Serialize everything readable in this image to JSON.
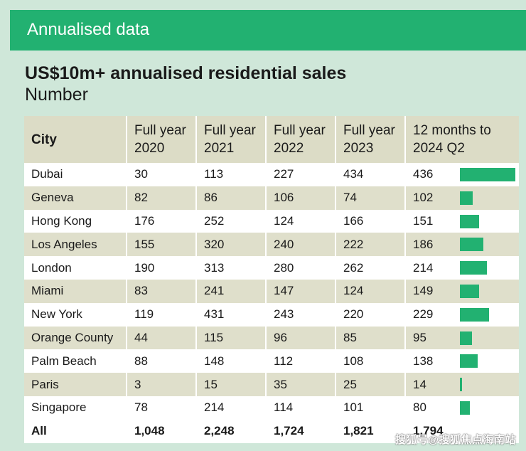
{
  "header": {
    "label": "Annualised data"
  },
  "chart_data": {
    "type": "table",
    "title": "US$10m+ annualised residential sales",
    "subtitle": "Number",
    "columns": [
      "City",
      "Full year 2020",
      "Full year 2021",
      "Full year 2022",
      "Full year 2023",
      "12 months to 2024 Q2"
    ],
    "column_lines": [
      [
        "City"
      ],
      [
        "Full year",
        "2020"
      ],
      [
        "Full year",
        "2021"
      ],
      [
        "Full year",
        "2022"
      ],
      [
        "Full year",
        "2023"
      ],
      [
        "12 months to",
        "2024 Q2"
      ]
    ],
    "rows": [
      {
        "city": "Dubai",
        "values": [
          "30",
          "113",
          "227",
          "434",
          "436"
        ],
        "last": 436
      },
      {
        "city": "Geneva",
        "values": [
          "82",
          "86",
          "106",
          "74",
          "102"
        ],
        "last": 102
      },
      {
        "city": "Hong Kong",
        "values": [
          "176",
          "252",
          "124",
          "166",
          "151"
        ],
        "last": 151
      },
      {
        "city": "Los Angeles",
        "values": [
          "155",
          "320",
          "240",
          "222",
          "186"
        ],
        "last": 186
      },
      {
        "city": "London",
        "values": [
          "190",
          "313",
          "280",
          "262",
          "214"
        ],
        "last": 214
      },
      {
        "city": "Miami",
        "values": [
          "83",
          "241",
          "147",
          "124",
          "149"
        ],
        "last": 149
      },
      {
        "city": "New York",
        "values": [
          "119",
          "431",
          "243",
          "220",
          "229"
        ],
        "last": 229
      },
      {
        "city": "Orange County",
        "values": [
          "44",
          "115",
          "96",
          "85",
          "95"
        ],
        "last": 95
      },
      {
        "city": "Palm Beach",
        "values": [
          "88",
          "148",
          "112",
          "108",
          "138"
        ],
        "last": 138
      },
      {
        "city": "Paris",
        "values": [
          "3",
          "15",
          "35",
          "25",
          "14"
        ],
        "last": 14
      },
      {
        "city": "Singapore",
        "values": [
          "78",
          "214",
          "114",
          "101",
          "80"
        ],
        "last": 80
      }
    ],
    "total": {
      "city": "All",
      "values": [
        "1,048",
        "2,248",
        "1,724",
        "1,821",
        "1,794"
      ]
    },
    "bar_max": 436,
    "bar_color": "#22b171"
  },
  "watermark": "搜狐号@搜狐焦点海南站"
}
